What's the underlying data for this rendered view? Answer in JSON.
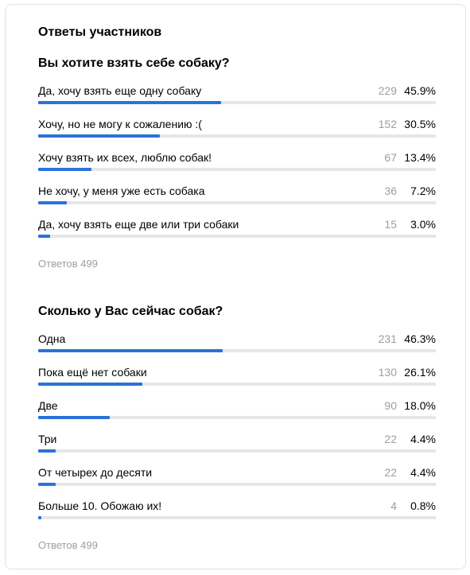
{
  "card": {
    "title": "Ответы участников"
  },
  "questions": [
    {
      "title": "Вы хотите взять себе собаку?",
      "options": [
        {
          "label": "Да, хочу взять еще одну собаку",
          "count": "229",
          "percent": "45.9%",
          "share": 0.459
        },
        {
          "label": "Хочу, но не могу к сожалению :(",
          "count": "152",
          "percent": "30.5%",
          "share": 0.305
        },
        {
          "label": "Хочу взять их всех, люблю собак!",
          "count": "67",
          "percent": "13.4%",
          "share": 0.134
        },
        {
          "label": "Не хочу, у меня уже есть собака",
          "count": "36",
          "percent": "7.2%",
          "share": 0.072
        },
        {
          "label": "Да, хочу взять еще две или три собаки",
          "count": "15",
          "percent": "3.0%",
          "share": 0.03
        }
      ],
      "total": "Ответов 499"
    },
    {
      "title": "Сколько у Вас сейчас собак?",
      "options": [
        {
          "label": "Одна",
          "count": "231",
          "percent": "46.3%",
          "share": 0.463
        },
        {
          "label": "Пока ещё нет собаки",
          "count": "130",
          "percent": "26.1%",
          "share": 0.261
        },
        {
          "label": "Две",
          "count": "90",
          "percent": "18.0%",
          "share": 0.18
        },
        {
          "label": "Три",
          "count": "22",
          "percent": "4.4%",
          "share": 0.044
        },
        {
          "label": "От четырех до десяти",
          "count": "22",
          "percent": "4.4%",
          "share": 0.044
        },
        {
          "label": "Больше 10. Обожаю их!",
          "count": "4",
          "percent": "0.8%",
          "share": 0.008
        }
      ],
      "total": "Ответов 499"
    }
  ],
  "colors": {
    "bar_fill": "#2a73d8",
    "bar_track": "#e6e6e6",
    "muted_text": "#9e9e9e"
  }
}
